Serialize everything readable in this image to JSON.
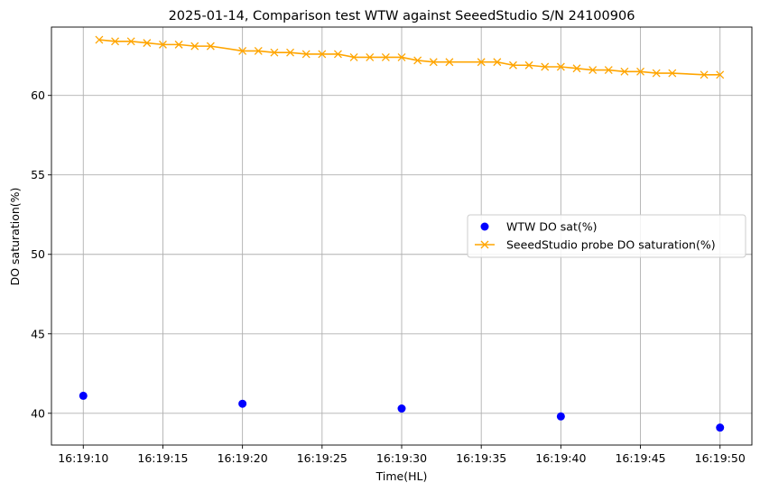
{
  "chart_data": {
    "type": "scatter+line",
    "title": "2025-01-14, Comparison test WTW against SeeedStudio S/N 24100906",
    "xlabel": "Time(HL)",
    "ylabel": "DO saturation(%)",
    "x_ticks": [
      "16:19:10",
      "16:19:15",
      "16:19:20",
      "16:19:25",
      "16:19:30",
      "16:19:35",
      "16:19:40",
      "16:19:45",
      "16:19:50"
    ],
    "x_tick_seconds": [
      10,
      15,
      20,
      25,
      30,
      35,
      40,
      45,
      50
    ],
    "xlim_seconds": [
      8,
      52
    ],
    "y_ticks": [
      40,
      45,
      50,
      55,
      60
    ],
    "ylim": [
      38.0,
      64.3
    ],
    "grid": true,
    "legend_position": "center-right",
    "series": [
      {
        "name": "WTW DO sat(%)",
        "kind": "scatter",
        "color": "#0000ff",
        "marker": "circle",
        "x_seconds": [
          10,
          20,
          30,
          40,
          50
        ],
        "y": [
          41.1,
          40.6,
          40.3,
          39.8,
          39.1
        ]
      },
      {
        "name": "SeeedStudio probe DO saturation(%)",
        "kind": "line",
        "color": "#ffa500",
        "marker": "x",
        "x_seconds": [
          11,
          12,
          13,
          14,
          15,
          16,
          17,
          18,
          20,
          21,
          22,
          23,
          24,
          25,
          26,
          27,
          28,
          29,
          30,
          31,
          32,
          33,
          35,
          36,
          37,
          38,
          39,
          40,
          41,
          42,
          43,
          44,
          45,
          46,
          47,
          49,
          50
        ],
        "y": [
          63.5,
          63.4,
          63.4,
          63.3,
          63.2,
          63.2,
          63.1,
          63.1,
          62.8,
          62.8,
          62.7,
          62.7,
          62.6,
          62.6,
          62.6,
          62.4,
          62.4,
          62.4,
          62.4,
          62.2,
          62.1,
          62.1,
          62.1,
          62.1,
          61.9,
          61.9,
          61.8,
          61.8,
          61.7,
          61.6,
          61.6,
          61.5,
          61.5,
          61.4,
          61.4,
          61.3,
          61.3
        ]
      }
    ]
  }
}
